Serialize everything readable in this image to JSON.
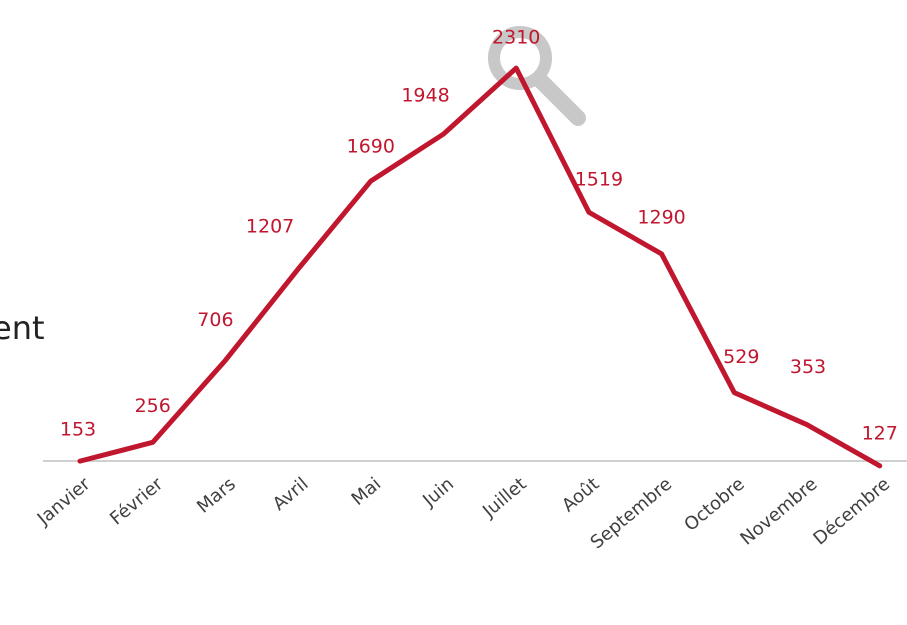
{
  "chart_data": {
    "type": "line",
    "side_text": "ent",
    "categories": [
      "Janvier",
      "Février",
      "Mars",
      "Avril",
      "Mai",
      "Juin",
      "Juillet",
      "Août",
      "Septembre",
      "Octobre",
      "Novembre",
      "Décembre"
    ],
    "series": [
      {
        "color": "#c0172f",
        "values": [
          153,
          256,
          706,
          1207,
          1690,
          1948,
          2310,
          1519,
          1290,
          529,
          353,
          127
        ]
      }
    ],
    "ylim": [
      0,
      2500
    ]
  }
}
